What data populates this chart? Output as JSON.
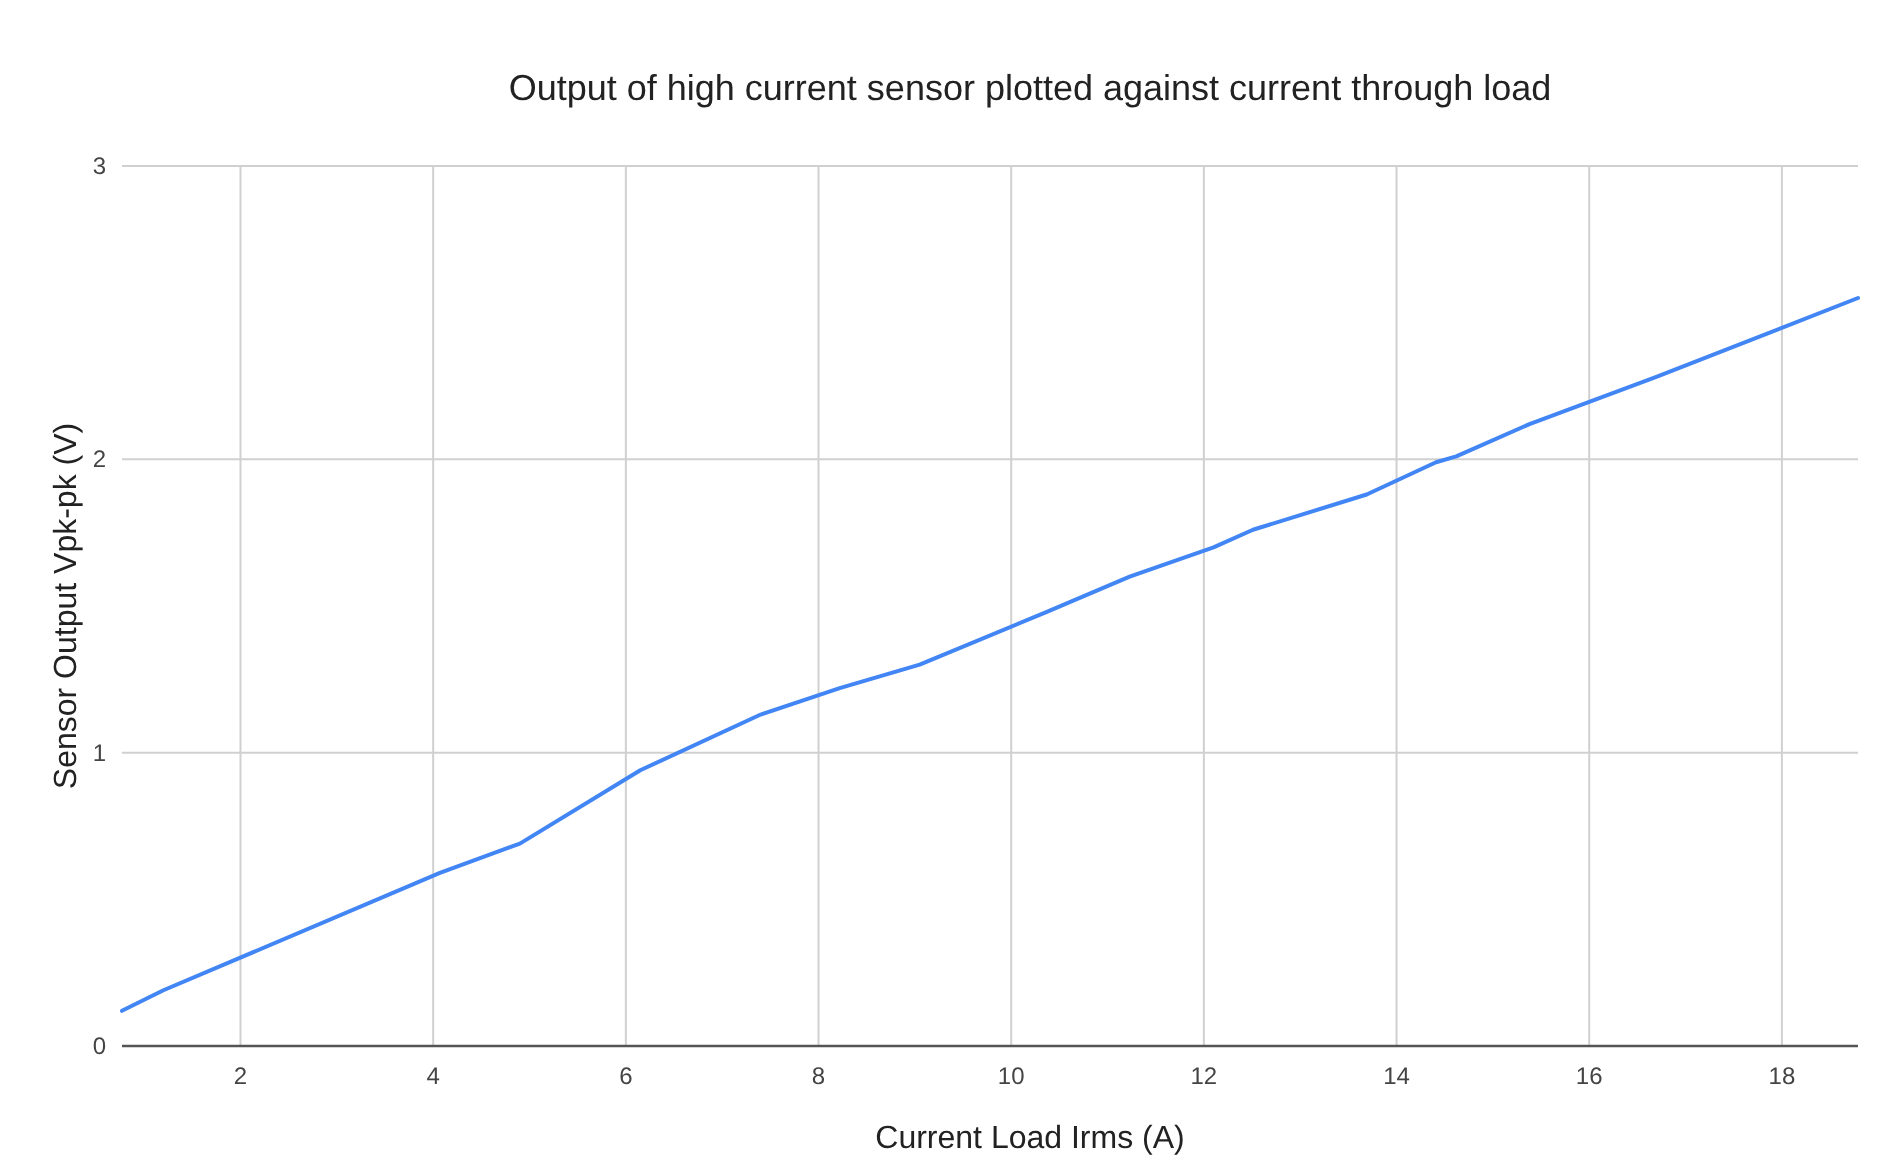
{
  "chart_data": {
    "type": "line",
    "title": "Output of high current sensor plotted against current through load",
    "xlabel": "Current Load Irms (A)",
    "ylabel": "Sensor Output Vpk-pk (V)",
    "x": [
      0.77,
      1.2,
      4.07,
      4.9,
      6.15,
      7.4,
      8.22,
      9.05,
      10.37,
      11.23,
      12.1,
      12.51,
      13.69,
      14.41,
      14.62,
      15.38,
      16.69,
      18.79
    ],
    "series": [
      {
        "color": "#4285f4",
        "values": [
          0.12,
          0.19,
          0.59,
          0.69,
          0.94,
          1.13,
          1.22,
          1.3,
          1.48,
          1.6,
          1.7,
          1.76,
          1.88,
          1.99,
          2.01,
          2.12,
          2.28,
          2.55
        ]
      }
    ],
    "xlim": [
      0.77,
      18.79
    ],
    "xticks": [
      2,
      4,
      6,
      8,
      10,
      12,
      14,
      16,
      18
    ],
    "ylim": [
      0,
      3
    ],
    "yticks": [
      0,
      1,
      2,
      3
    ],
    "grid": true,
    "marker": "none",
    "line_style": "solid"
  }
}
